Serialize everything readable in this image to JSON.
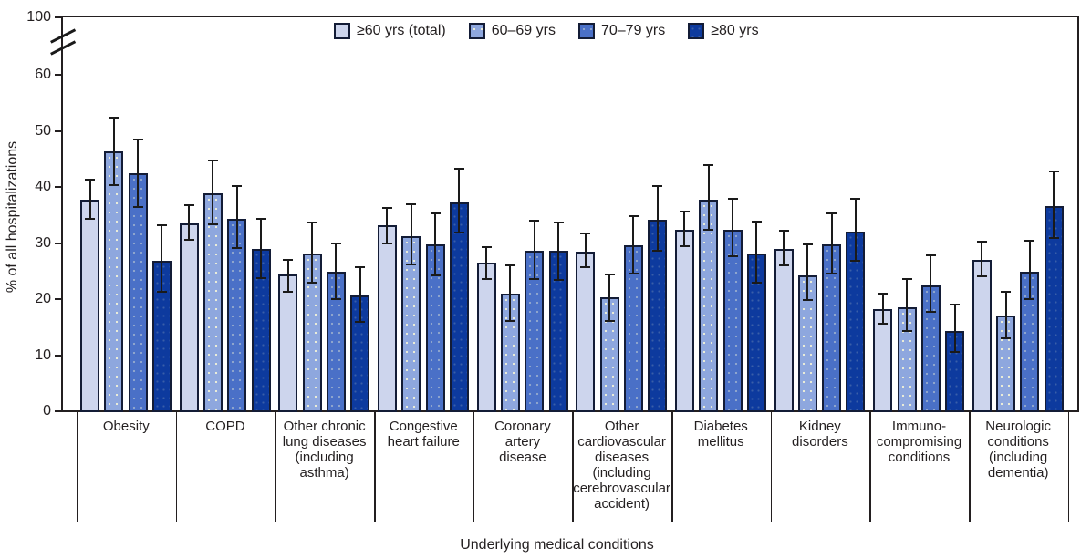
{
  "chart_data": {
    "type": "bar",
    "title": "",
    "xlabel": "Underlying medical conditions",
    "ylabel": "% of all hospitalizations",
    "ylim": [
      0,
      100
    ],
    "yticks": [
      0,
      10,
      20,
      30,
      40,
      50,
      60,
      100
    ],
    "y_axis_break_between": [
      60,
      100
    ],
    "grid": false,
    "legend_position": "top-center",
    "error_bars": "vertical error bars with caps on every bar",
    "categories": [
      "Obesity",
      "COPD",
      "Other chronic lung diseases (including asthma)",
      "Congestive heart failure",
      "Coronary artery disease",
      "Other cardiovascular diseases (including cerebrovascular accident)",
      "Diabetes mellitus",
      "Kidney disorders",
      "Immuno-compromising conditions",
      "Neurologic conditions (including dementia)"
    ],
    "category_label_lines": [
      [
        "Obesity"
      ],
      [
        "COPD"
      ],
      [
        "Other chronic",
        "lung diseases",
        "(including",
        "asthma)"
      ],
      [
        "Congestive",
        "heart failure"
      ],
      [
        "Coronary",
        "artery",
        "disease"
      ],
      [
        "Other",
        "cardiovascular",
        "diseases",
        "(including",
        "cerebrovascular",
        "accident)"
      ],
      [
        "Diabetes",
        "mellitus"
      ],
      [
        "Kidney",
        "disorders"
      ],
      [
        "Immuno-",
        "compromising",
        "conditions"
      ],
      [
        "Neurologic",
        "conditions",
        "(including",
        "dementia)"
      ]
    ],
    "series": [
      {
        "name": "≥60 yrs (total)",
        "color": "#cdd5ed",
        "values": [
          37.8,
          33.5,
          24.4,
          33.1,
          26.5,
          28.5,
          32.4,
          29.0,
          18.2,
          27.0
        ],
        "ci": [
          [
            34.2,
            41.5
          ],
          [
            30.4,
            36.9
          ],
          [
            21.2,
            27.2
          ],
          [
            29.8,
            36.5
          ],
          [
            23.4,
            29.4
          ],
          [
            25.5,
            31.9
          ],
          [
            29.3,
            35.8
          ],
          [
            25.9,
            32.4
          ],
          [
            15.4,
            21.2
          ],
          [
            23.9,
            30.4
          ]
        ]
      },
      {
        "name": "60–69 yrs",
        "color": "#8ea7de",
        "values": [
          46.4,
          38.9,
          28.1,
          31.3,
          21.0,
          20.3,
          37.8,
          24.3,
          18.6,
          17.0
        ],
        "ci": [
          [
            40.2,
            52.5
          ],
          [
            33.1,
            44.9
          ],
          [
            22.8,
            33.8
          ],
          [
            26.0,
            37.1
          ],
          [
            15.9,
            26.2
          ],
          [
            16.0,
            24.6
          ],
          [
            32.2,
            44.0
          ],
          [
            19.6,
            29.9
          ],
          [
            14.1,
            23.7
          ],
          [
            12.9,
            21.4
          ]
        ]
      },
      {
        "name": "70–79 yrs",
        "color": "#4a70c7",
        "values": [
          42.4,
          34.3,
          24.9,
          29.7,
          28.6,
          29.6,
          32.4,
          29.7,
          22.4,
          24.9
        ],
        "ci": [
          [
            36.3,
            48.6
          ],
          [
            28.9,
            40.3
          ],
          [
            19.8,
            30.1
          ],
          [
            24.1,
            35.5
          ],
          [
            23.4,
            34.2
          ],
          [
            24.4,
            35.0
          ],
          [
            27.4,
            38.0
          ],
          [
            24.4,
            35.4
          ],
          [
            17.6,
            27.9
          ],
          [
            19.8,
            30.5
          ]
        ]
      },
      {
        "name": "≥80 yrs",
        "color": "#0d3a9e",
        "values": [
          26.9,
          29.0,
          20.7,
          37.3,
          28.6,
          34.2,
          28.1,
          32.0,
          14.3,
          36.6
        ],
        "ci": [
          [
            21.2,
            33.3
          ],
          [
            23.6,
            34.4
          ],
          [
            15.7,
            25.9
          ],
          [
            31.7,
            43.4
          ],
          [
            23.2,
            33.9
          ],
          [
            28.5,
            40.4
          ],
          [
            22.8,
            34.0
          ],
          [
            26.6,
            38.0
          ],
          [
            10.4,
            19.2
          ],
          [
            30.8,
            43.0
          ]
        ]
      }
    ]
  },
  "colors": {
    "axis": "#231f20",
    "bar_outline": "#131c36",
    "error_bar": "#1a1a1a",
    "background": "#ffffff"
  }
}
